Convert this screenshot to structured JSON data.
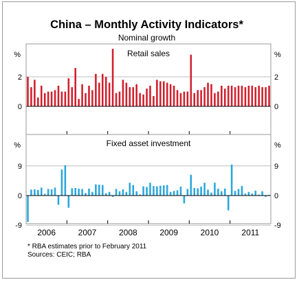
{
  "title": "China – Monthly Activity Indicators*",
  "subtitle": "Nominal growth",
  "footnote": "*     RBA estimates prior to February 2011",
  "sources": "Sources: CEIC; RBA",
  "colors": {
    "retail": "#d11f2c",
    "fai": "#2aa7dd",
    "frame": "#9a9a9a",
    "grid": "#bdbdbd",
    "axis": "#000000"
  },
  "chart_data": [
    {
      "type": "bar",
      "title": "Retail sales",
      "ylabel": "%",
      "ylim": [
        0,
        4
      ],
      "yticks": [
        0,
        2
      ],
      "ytick_labels": [
        "0",
        "2"
      ],
      "grid": true,
      "x": [
        "2006-01",
        "2006-02",
        "2006-03",
        "2006-04",
        "2006-05",
        "2006-06",
        "2006-07",
        "2006-08",
        "2006-09",
        "2006-10",
        "2006-11",
        "2006-12",
        "2007-01",
        "2007-02",
        "2007-03",
        "2007-04",
        "2007-05",
        "2007-06",
        "2007-07",
        "2007-08",
        "2007-09",
        "2007-10",
        "2007-11",
        "2007-12",
        "2008-01",
        "2008-02",
        "2008-03",
        "2008-04",
        "2008-05",
        "2008-06",
        "2008-07",
        "2008-08",
        "2008-09",
        "2008-10",
        "2008-11",
        "2008-12",
        "2009-01",
        "2009-02",
        "2009-03",
        "2009-04",
        "2009-05",
        "2009-06",
        "2009-07",
        "2009-08",
        "2009-09",
        "2009-10",
        "2009-11",
        "2009-12",
        "2010-01",
        "2010-02",
        "2010-03",
        "2010-04",
        "2010-05",
        "2010-06",
        "2010-07",
        "2010-08",
        "2010-09",
        "2010-10",
        "2010-11",
        "2010-12",
        "2011-01",
        "2011-02",
        "2011-03",
        "2011-04",
        "2011-05",
        "2011-06",
        "2011-07",
        "2011-08",
        "2011-09",
        "2011-10",
        "2011-11",
        "2011-12"
      ],
      "values": [
        2.0,
        1.3,
        1.8,
        0.6,
        1.4,
        0.9,
        1.0,
        1.0,
        1.1,
        1.4,
        1.0,
        1.0,
        1.9,
        1.3,
        2.6,
        0.5,
        1.5,
        0.9,
        1.4,
        1.1,
        2.2,
        1.6,
        2.2,
        2.0,
        1.6,
        3.9,
        0.9,
        1.0,
        1.8,
        1.6,
        1.3,
        1.3,
        1.5,
        0.9,
        0.8,
        1.2,
        1.4,
        0.7,
        1.8,
        1.7,
        1.7,
        1.6,
        1.5,
        1.4,
        1.1,
        0.9,
        1.0,
        1.0,
        3.5,
        0.9,
        1.1,
        1.1,
        1.3,
        1.6,
        1.5,
        0.9,
        1.0,
        1.4,
        1.2,
        1.4,
        1.4,
        1.3,
        1.4,
        1.4,
        1.3,
        1.4,
        1.4,
        1.3,
        1.4,
        1.3,
        1.3,
        1.4
      ],
      "xtick_labels": [
        "2006",
        "2007",
        "2008",
        "2009",
        "2010",
        "2011"
      ]
    },
    {
      "type": "bar",
      "title": "Fixed asset investment",
      "ylabel": "%",
      "ylim": [
        -9,
        13.5
      ],
      "yticks": [
        -9,
        0,
        9
      ],
      "ytick_labels": [
        "-9",
        "0",
        "9"
      ],
      "grid": true,
      "x": [
        "2006-01",
        "2006-02",
        "2006-03",
        "2006-04",
        "2006-05",
        "2006-06",
        "2006-07",
        "2006-08",
        "2006-09",
        "2006-10",
        "2006-11",
        "2006-12",
        "2007-01",
        "2007-02",
        "2007-03",
        "2007-04",
        "2007-05",
        "2007-06",
        "2007-07",
        "2007-08",
        "2007-09",
        "2007-10",
        "2007-11",
        "2007-12",
        "2008-01",
        "2008-02",
        "2008-03",
        "2008-04",
        "2008-05",
        "2008-06",
        "2008-07",
        "2008-08",
        "2008-09",
        "2008-10",
        "2008-11",
        "2008-12",
        "2009-01",
        "2009-02",
        "2009-03",
        "2009-04",
        "2009-05",
        "2009-06",
        "2009-07",
        "2009-08",
        "2009-09",
        "2009-10",
        "2009-11",
        "2009-12",
        "2010-01",
        "2010-02",
        "2010-03",
        "2010-04",
        "2010-05",
        "2010-06",
        "2010-07",
        "2010-08",
        "2010-09",
        "2010-10",
        "2010-11",
        "2010-12",
        "2011-01",
        "2011-02",
        "2011-03",
        "2011-04",
        "2011-05",
        "2011-06",
        "2011-07",
        "2011-08",
        "2011-09",
        "2011-10",
        "2011-11",
        "2011-12"
      ],
      "values": [
        -8.0,
        1.8,
        1.9,
        1.7,
        2.4,
        0.5,
        2.0,
        1.9,
        2.4,
        -2.8,
        7.9,
        9.2,
        -3.7,
        2.2,
        2.3,
        2.1,
        2.0,
        0.8,
        2.1,
        1.1,
        3.4,
        3.3,
        3.2,
        0.7,
        1.1,
        -0.4,
        2.0,
        1.3,
        1.9,
        1.1,
        3.9,
        3.2,
        1.3,
        0.3,
        2.8,
        2.6,
        3.9,
        2.9,
        2.8,
        3.0,
        3.1,
        3.2,
        1.1,
        1.4,
        1.6,
        2.7,
        -2.4,
        2.0,
        6.3,
        2.3,
        2.2,
        2.7,
        3.9,
        1.8,
        0.9,
        3.9,
        2.1,
        1.3,
        2.1,
        -4.5,
        9.4,
        1.4,
        2.0,
        2.9,
        0.6,
        1.1,
        0.6,
        1.5,
        0.3,
        1.3,
        -0.4,
        0.2
      ],
      "xtick_labels": [
        "2006",
        "2007",
        "2008",
        "2009",
        "2010",
        "2011"
      ]
    }
  ]
}
